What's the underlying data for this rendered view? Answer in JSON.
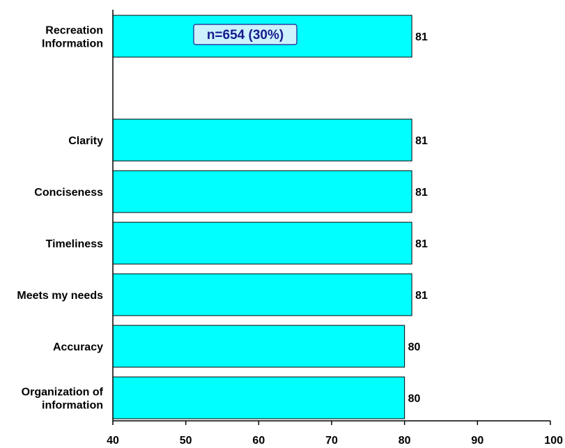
{
  "chart_data": {
    "type": "bar",
    "orientation": "horizontal",
    "categories": [
      [
        "Recreation",
        "Information"
      ],
      [
        "Clarity"
      ],
      [
        "Conciseness"
      ],
      [
        "Timeliness"
      ],
      [
        "Meets my needs"
      ],
      [
        "Accuracy"
      ],
      [
        "Organization of",
        "information"
      ]
    ],
    "values": [
      81,
      81,
      81,
      81,
      81,
      80,
      80
    ],
    "value_labels": [
      "81",
      "81",
      "81",
      "81",
      "81",
      "80",
      "80"
    ],
    "annotation": "n=654 (30%)",
    "xlim": [
      40,
      100
    ],
    "xticks": [
      40,
      50,
      60,
      70,
      80,
      90,
      100
    ],
    "grid": false,
    "colors": {
      "bar_fill": "#00ffff",
      "bar_stroke": "#000000",
      "annotation_fill": "#ccf2ff",
      "annotation_stroke": "#1a1a8c",
      "annotation_text": "#1a1a8c"
    }
  }
}
